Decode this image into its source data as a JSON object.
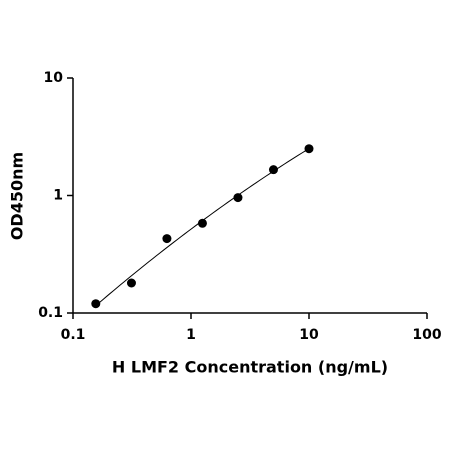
{
  "chart_data": {
    "type": "scatter",
    "x_label": "H LMF2 Concentration (ng/mL)",
    "y_label": "OD450nm",
    "x": [
      0.156,
      0.313,
      0.625,
      1.25,
      2.5,
      5,
      10
    ],
    "values": [
      0.12,
      0.18,
      0.43,
      0.58,
      0.96,
      1.66,
      2.5
    ],
    "color": "#000000",
    "xscale": "log",
    "yscale": "log",
    "xlim": [
      0.1,
      100
    ],
    "ylim": [
      0.1,
      10
    ],
    "xticks": [
      0.1,
      1,
      10,
      100
    ],
    "yticks": [
      0.1,
      1,
      10
    ],
    "fit_line": true
  }
}
